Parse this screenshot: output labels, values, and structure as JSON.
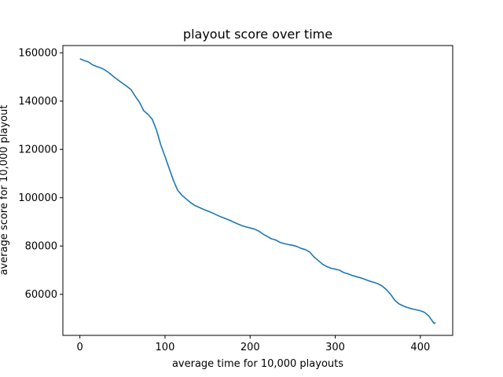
{
  "chart_data": {
    "type": "line",
    "title": "playout score over time",
    "xlabel": "average time for 10,000 playouts",
    "ylabel": "average score for 10,000 playout",
    "xlim": [
      -20,
      438
    ],
    "ylim": [
      43000,
      163000
    ],
    "xticks": [
      0,
      100,
      200,
      300,
      400
    ],
    "xtick_labels": [
      "0",
      "100",
      "200",
      "300",
      "400"
    ],
    "yticks": [
      60000,
      80000,
      100000,
      120000,
      140000,
      160000
    ],
    "ytick_labels": [
      "60000",
      "80000",
      "100000",
      "120000",
      "140000",
      "160000"
    ],
    "grid": false,
    "series": [
      {
        "color": "#1f77b4",
        "x": [
          0,
          5,
          10,
          15,
          20,
          25,
          30,
          35,
          40,
          45,
          50,
          55,
          60,
          65,
          70,
          75,
          80,
          85,
          90,
          95,
          100,
          105,
          110,
          115,
          120,
          125,
          130,
          135,
          140,
          145,
          150,
          155,
          160,
          165,
          170,
          175,
          180,
          185,
          190,
          195,
          200,
          205,
          210,
          215,
          220,
          225,
          230,
          235,
          240,
          245,
          250,
          255,
          260,
          265,
          270,
          275,
          280,
          285,
          290,
          295,
          300,
          305,
          310,
          315,
          320,
          325,
          330,
          335,
          340,
          345,
          350,
          355,
          360,
          365,
          370,
          375,
          380,
          385,
          390,
          395,
          400,
          405,
          410,
          413,
          416,
          418
        ],
        "y": [
          157500,
          156800,
          156200,
          155000,
          154300,
          153700,
          152800,
          151500,
          150000,
          148700,
          147400,
          146200,
          144800,
          142000,
          139500,
          136000,
          134500,
          132500,
          128000,
          122000,
          117000,
          112000,
          107000,
          103000,
          101000,
          99500,
          98000,
          96800,
          96000,
          95200,
          94500,
          93800,
          93000,
          92200,
          91500,
          90800,
          90000,
          89200,
          88500,
          87900,
          87500,
          87000,
          86200,
          85000,
          84000,
          83000,
          82500,
          81500,
          81000,
          80600,
          80300,
          79800,
          79000,
          78500,
          77500,
          75500,
          74000,
          72500,
          71500,
          70800,
          70400,
          70000,
          69000,
          68500,
          67800,
          67300,
          66800,
          66200,
          65500,
          65000,
          64400,
          63500,
          62000,
          60000,
          57500,
          56000,
          55200,
          54500,
          54000,
          53600,
          53200,
          52500,
          51000,
          49500,
          48000,
          48200
        ]
      }
    ]
  }
}
